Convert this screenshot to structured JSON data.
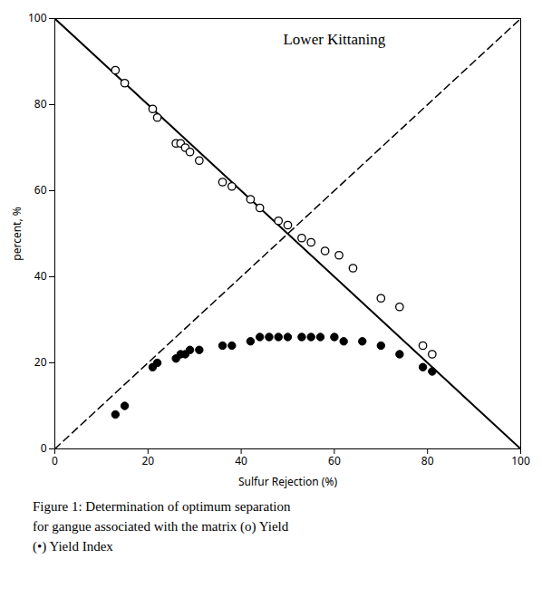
{
  "chart_data": {
    "type": "scatter",
    "title": "Lower Kittaning",
    "xlabel": "Sulfur Rejection (%)",
    "ylabel": "percent, %",
    "caption": [
      "Figure 1: Determination of optimum separation",
      "for gangue associated with the matrix (o) Yield",
      "(•) Yield Index"
    ],
    "xlim": [
      0,
      100
    ],
    "ylim": [
      0,
      100
    ],
    "xticks": [
      0,
      20,
      40,
      60,
      80,
      100
    ],
    "yticks": [
      0,
      20,
      40,
      60,
      80,
      100
    ],
    "grid": false,
    "series": [
      {
        "type": "line",
        "line_style": "solid",
        "color": "#000000",
        "x": [
          0,
          100
        ],
        "values": [
          100,
          0
        ]
      },
      {
        "type": "line",
        "line_style": "dashed",
        "color": "#000000",
        "x": [
          0,
          100
        ],
        "values": [
          0,
          100
        ]
      },
      {
        "type": "scatter",
        "marker": "open_circle",
        "color": "#000000",
        "x": [
          13,
          15,
          21,
          22,
          26,
          27,
          28,
          29,
          31,
          36,
          38,
          42,
          44,
          48,
          50,
          53,
          55,
          58,
          61,
          64,
          70,
          74,
          79,
          81
        ],
        "values": [
          88,
          85,
          79,
          77,
          71,
          71,
          70,
          69,
          67,
          62,
          61,
          58,
          56,
          53,
          52,
          49,
          48,
          46,
          45,
          42,
          35,
          33,
          24,
          22
        ]
      },
      {
        "type": "scatter",
        "marker": "filled_circle",
        "color": "#000000",
        "x": [
          13,
          15,
          21,
          22,
          26,
          27,
          28,
          29,
          31,
          36,
          38,
          42,
          44,
          46,
          48,
          50,
          53,
          55,
          57,
          60,
          62,
          66,
          70,
          74,
          79,
          81
        ],
        "values": [
          8,
          10,
          19,
          20,
          21,
          22,
          22,
          23,
          23,
          24,
          24,
          25,
          26,
          26,
          26,
          26,
          26,
          26,
          26,
          26,
          25,
          25,
          24,
          22,
          19,
          18
        ]
      }
    ]
  }
}
